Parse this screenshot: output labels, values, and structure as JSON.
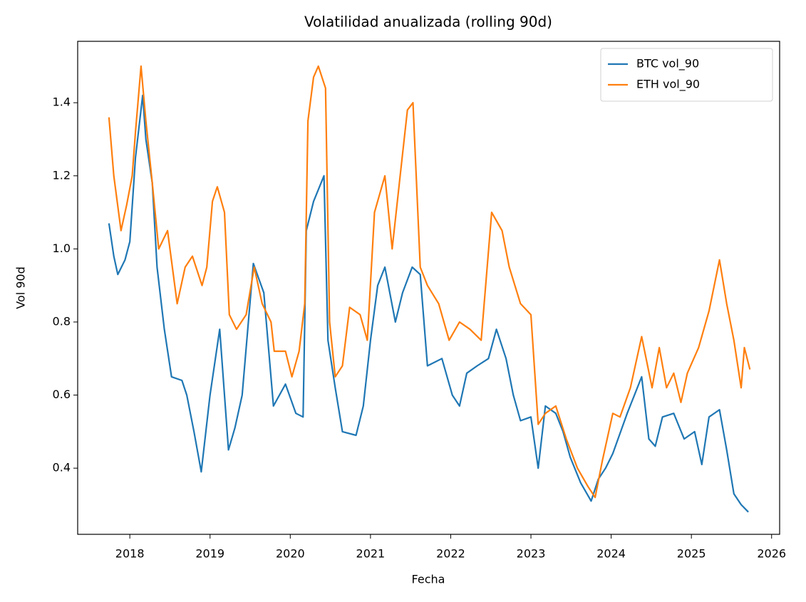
{
  "chart_data": {
    "type": "line",
    "title": "Volatilidad anualizada (rolling 90d)",
    "x_label": "Fecha",
    "y_label": "Vol 90d",
    "xlim": [
      2017.35,
      2026.1
    ],
    "xticks": [
      2018,
      2019,
      2020,
      2021,
      2022,
      2023,
      2024,
      2025,
      2026
    ],
    "ylim": [
      0.219,
      1.568
    ],
    "yticks": [
      0.4,
      0.6,
      0.8,
      {
        "value": 1,
        "label": "1.0"
      },
      1.2,
      1.4
    ],
    "grid": false,
    "legend": "upper right",
    "series": [
      {
        "name": "BTC vol_90",
        "color": "#1f77b4",
        "x": [
          2017.74,
          2017.8,
          2017.85,
          2017.94,
          2018.0,
          2018.07,
          2018.16,
          2018.2,
          2018.28,
          2018.34,
          2018.43,
          2018.52,
          2018.65,
          2018.71,
          2018.8,
          2018.89,
          2019.0,
          2019.12,
          2019.23,
          2019.31,
          2019.4,
          2019.54,
          2019.67,
          2019.79,
          2019.94,
          2020.07,
          2020.16,
          2020.2,
          2020.29,
          2020.42,
          2020.47,
          2020.56,
          2020.65,
          2020.82,
          2020.91,
          2021.0,
          2021.09,
          2021.18,
          2021.31,
          2021.4,
          2021.52,
          2021.62,
          2021.71,
          2021.89,
          2022.02,
          2022.11,
          2022.2,
          2022.33,
          2022.47,
          2022.57,
          2022.69,
          2022.78,
          2022.87,
          2023.0,
          2023.09,
          2023.18,
          2023.31,
          2023.4,
          2023.49,
          2023.62,
          2023.75,
          2023.84,
          2023.93,
          2024.02,
          2024.2,
          2024.38,
          2024.47,
          2024.55,
          2024.64,
          2024.78,
          2024.91,
          2025.04,
          2025.13,
          2025.22,
          2025.35,
          2025.44,
          2025.53,
          2025.62,
          2025.71
        ],
        "values": [
          1.07,
          0.98,
          0.93,
          0.97,
          1.02,
          1.25,
          1.42,
          1.3,
          1.18,
          0.95,
          0.78,
          0.65,
          0.64,
          0.6,
          0.5,
          0.39,
          0.6,
          0.78,
          0.45,
          0.51,
          0.6,
          0.96,
          0.88,
          0.57,
          0.63,
          0.55,
          0.54,
          1.05,
          1.13,
          1.2,
          0.75,
          0.62,
          0.5,
          0.49,
          0.57,
          0.75,
          0.9,
          0.95,
          0.8,
          0.88,
          0.95,
          0.93,
          0.68,
          0.7,
          0.6,
          0.57,
          0.66,
          0.68,
          0.7,
          0.78,
          0.7,
          0.6,
          0.53,
          0.54,
          0.4,
          0.57,
          0.55,
          0.5,
          0.43,
          0.36,
          0.31,
          0.37,
          0.4,
          0.44,
          0.55,
          0.65,
          0.48,
          0.46,
          0.54,
          0.55,
          0.48,
          0.5,
          0.41,
          0.54,
          0.56,
          0.45,
          0.33,
          0.3,
          0.28
        ]
      },
      {
        "name": "ETH vol_90",
        "color": "#ff7f0e",
        "x": [
          2017.74,
          2017.8,
          2017.89,
          2017.96,
          2018.03,
          2018.07,
          2018.14,
          2018.2,
          2018.28,
          2018.36,
          2018.47,
          2018.59,
          2018.69,
          2018.78,
          2018.9,
          2018.96,
          2019.03,
          2019.09,
          2019.18,
          2019.24,
          2019.33,
          2019.45,
          2019.55,
          2019.65,
          2019.76,
          2019.8,
          2019.94,
          2020.02,
          2020.11,
          2020.18,
          2020.22,
          2020.29,
          2020.35,
          2020.44,
          2020.49,
          2020.56,
          2020.65,
          2020.74,
          2020.87,
          2020.96,
          2021.05,
          2021.18,
          2021.27,
          2021.37,
          2021.46,
          2021.53,
          2021.62,
          2021.71,
          2021.85,
          2021.98,
          2022.11,
          2022.24,
          2022.38,
          2022.51,
          2022.64,
          2022.73,
          2022.87,
          2023.0,
          2023.09,
          2023.18,
          2023.31,
          2023.44,
          2023.58,
          2023.71,
          2023.8,
          2023.89,
          2024.02,
          2024.11,
          2024.24,
          2024.38,
          2024.51,
          2024.6,
          2024.69,
          2024.78,
          2024.87,
          2024.95,
          2025.09,
          2025.22,
          2025.35,
          2025.44,
          2025.53,
          2025.62,
          2025.66,
          2025.73
        ],
        "values": [
          1.36,
          1.2,
          1.05,
          1.12,
          1.2,
          1.32,
          1.5,
          1.35,
          1.18,
          1.0,
          1.05,
          0.85,
          0.95,
          0.98,
          0.9,
          0.95,
          1.13,
          1.17,
          1.1,
          0.82,
          0.78,
          0.82,
          0.95,
          0.85,
          0.8,
          0.72,
          0.72,
          0.65,
          0.72,
          0.85,
          1.35,
          1.47,
          1.5,
          1.44,
          0.8,
          0.65,
          0.68,
          0.84,
          0.82,
          0.75,
          1.1,
          1.2,
          1.0,
          1.2,
          1.38,
          1.4,
          0.95,
          0.9,
          0.85,
          0.75,
          0.8,
          0.78,
          0.75,
          1.1,
          1.05,
          0.95,
          0.85,
          0.82,
          0.52,
          0.55,
          0.57,
          0.48,
          0.4,
          0.35,
          0.32,
          0.42,
          0.55,
          0.54,
          0.62,
          0.76,
          0.62,
          0.73,
          0.62,
          0.66,
          0.58,
          0.66,
          0.73,
          0.83,
          0.97,
          0.85,
          0.75,
          0.62,
          0.73,
          0.67
        ]
      }
    ]
  }
}
